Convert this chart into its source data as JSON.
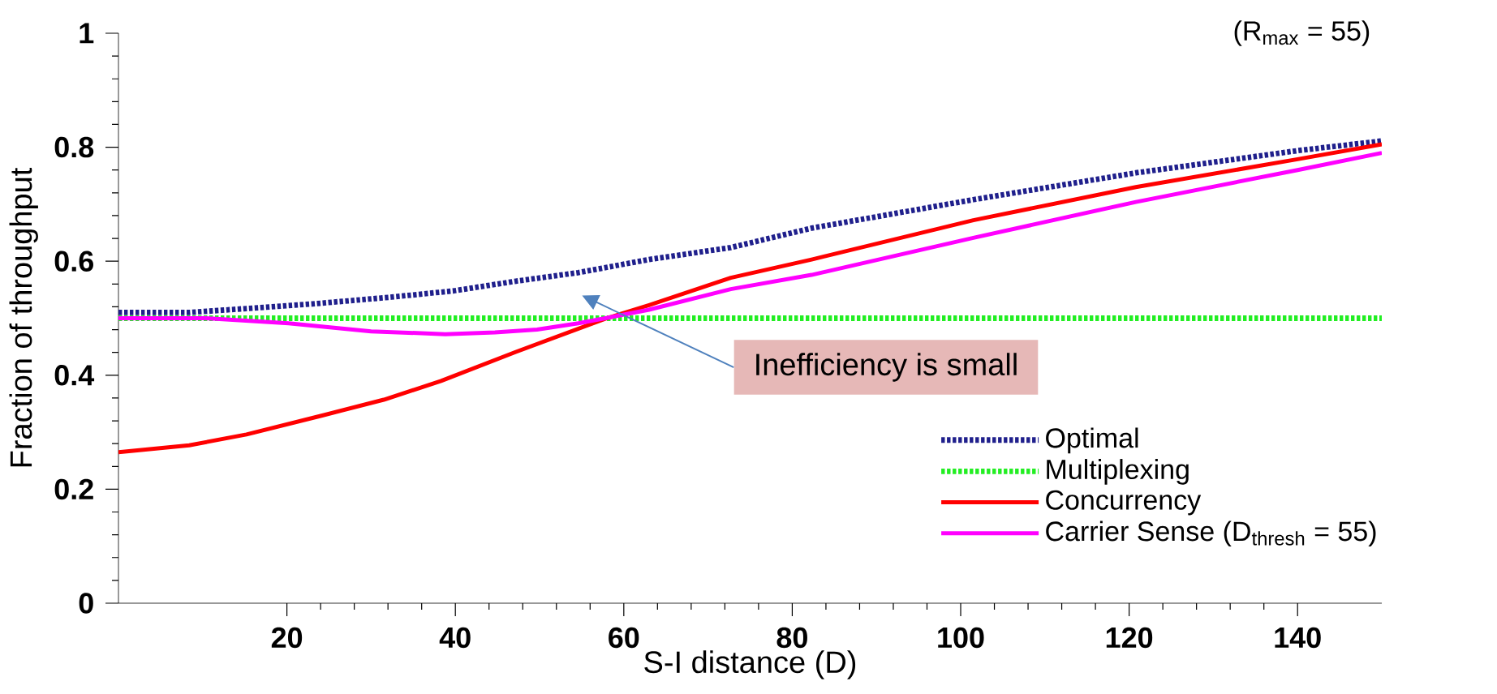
{
  "chart_data": {
    "type": "line",
    "xlabel": "S-I distance (D)",
    "ylabel": "Fraction of throughput",
    "xlim": [
      0,
      150
    ],
    "ylim": [
      0,
      1
    ],
    "xticks": [
      20,
      40,
      60,
      80,
      100,
      120,
      140
    ],
    "yticks": [
      0,
      0.2,
      0.4,
      0.6,
      0.8,
      1
    ],
    "legend": "bottom right",
    "annotations": [
      "(R$_{max}$ = 55)",
      "Inefficiency is small"
    ],
    "series": [
      {
        "name": "Optimal",
        "color": "#1f1f8c",
        "line_style": "dotted",
        "x": [
          0,
          8.4,
          15.2,
          23,
          32.4,
          39.8,
          47.2,
          54.6,
          63,
          72.7,
          82.3,
          101.5,
          120.8,
          140,
          150
        ],
        "values": [
          0.51,
          0.51,
          0.517,
          0.525,
          0.537,
          0.548,
          0.565,
          0.58,
          0.603,
          0.624,
          0.658,
          0.708,
          0.755,
          0.794,
          0.811
        ]
      },
      {
        "name": "Multiplexing",
        "color": "#22ee22",
        "line_style": "dotted",
        "x": [
          0,
          150
        ],
        "values": [
          0.5,
          0.5
        ]
      },
      {
        "name": "Concurrency",
        "color": "#ff0000",
        "line_style": "solid",
        "x": [
          0,
          8.4,
          15.2,
          24.1,
          31.5,
          38.3,
          47.2,
          57.8,
          63,
          72.7,
          82.3,
          101.5,
          120.8,
          140,
          150
        ],
        "values": [
          0.265,
          0.277,
          0.296,
          0.329,
          0.357,
          0.39,
          0.441,
          0.499,
          0.523,
          0.571,
          0.603,
          0.672,
          0.73,
          0.779,
          0.805
        ]
      },
      {
        "name": "Carrier Sense (D$_{thresh}$ = 55)",
        "color": "#ff00ff",
        "line_style": "solid",
        "x": [
          0,
          10.3,
          20.2,
          30,
          38.8,
          44.7,
          49.7,
          54.6,
          57.8,
          63,
          72.7,
          82.3,
          101.5,
          120.8,
          140,
          150
        ],
        "values": [
          0.5,
          0.5,
          0.491,
          0.477,
          0.472,
          0.475,
          0.48,
          0.491,
          0.5,
          0.515,
          0.551,
          0.576,
          0.641,
          0.704,
          0.76,
          0.79
        ]
      }
    ]
  }
}
